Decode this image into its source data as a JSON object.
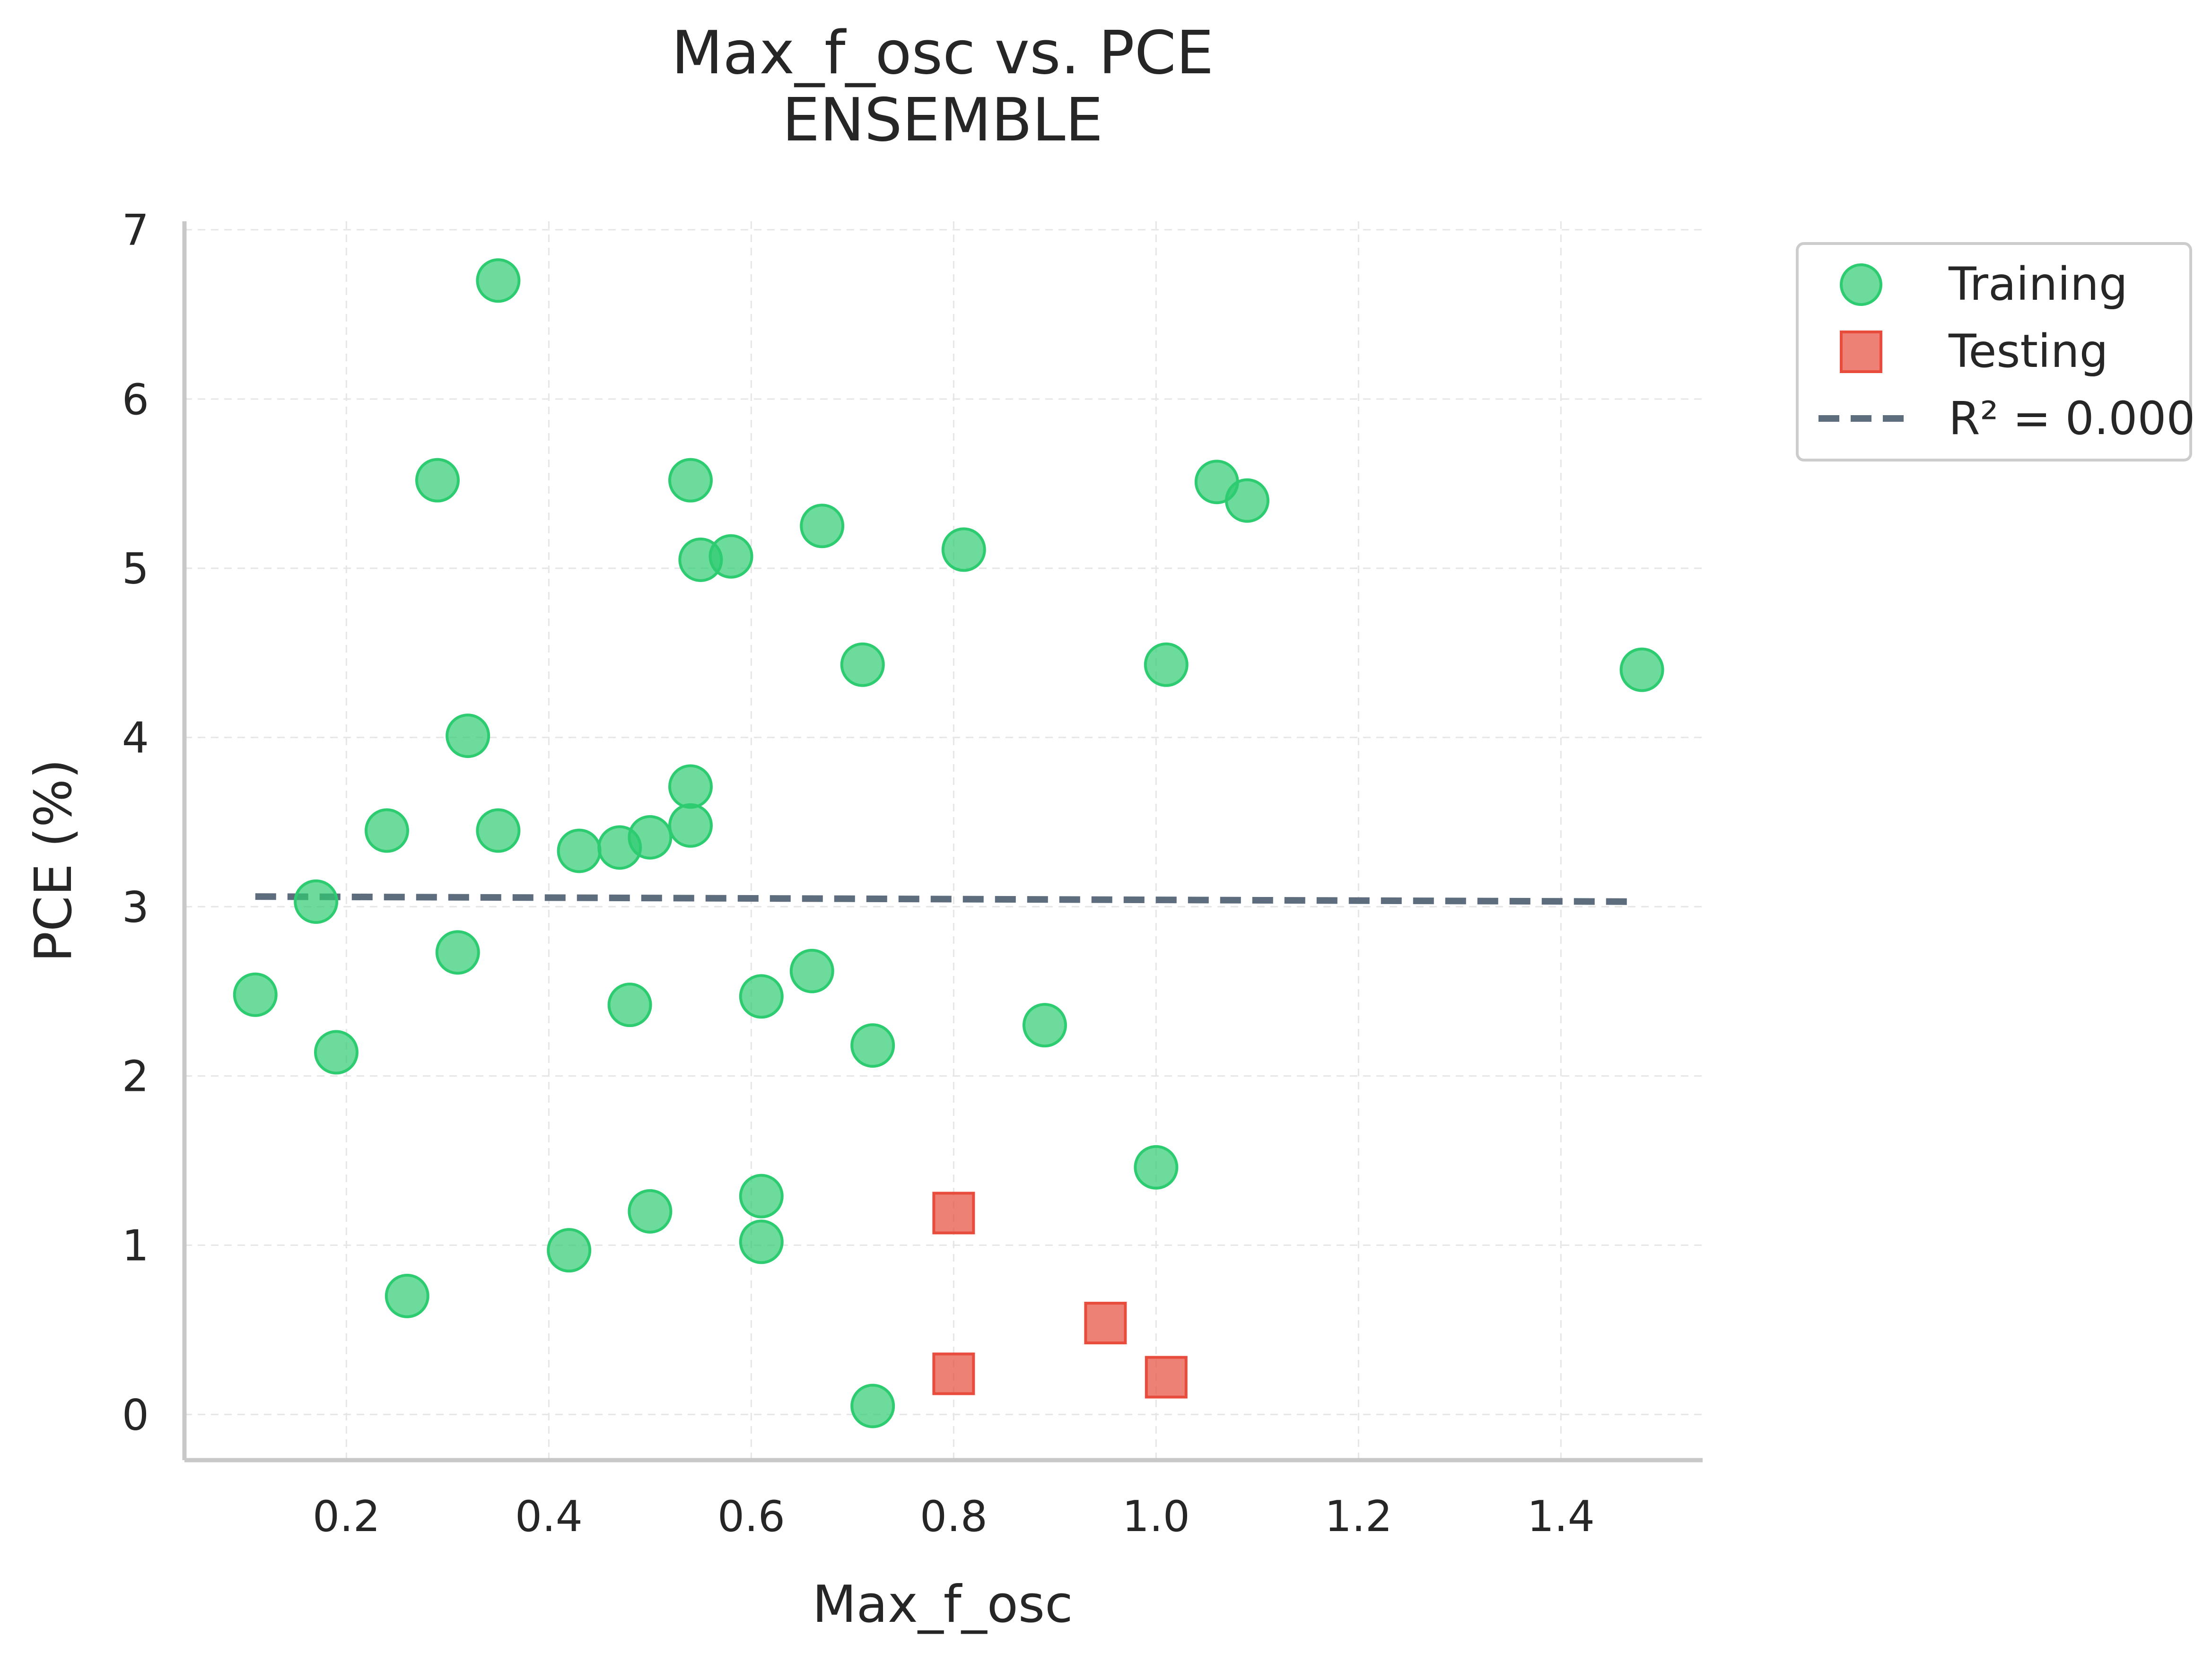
{
  "chart_data": {
    "type": "scatter",
    "title": "Max_f_osc vs. PCE",
    "subtitle": "ENSEMBLE",
    "xlabel": "Max_f_osc",
    "ylabel": "PCE (%)",
    "xlim": [
      0.04,
      1.54
    ],
    "ylim": [
      -0.27,
      7.05
    ],
    "x_ticks": [
      0.2,
      0.4,
      0.6,
      0.8,
      1.0,
      1.2,
      1.4
    ],
    "x_tick_labels": [
      "0.2",
      "0.4",
      "0.6",
      "0.8",
      "1.0",
      "1.2",
      "1.4"
    ],
    "y_ticks": [
      0,
      1,
      2,
      3,
      4,
      5,
      6,
      7
    ],
    "y_tick_labels": [
      "0",
      "1",
      "2",
      "3",
      "4",
      "5",
      "6",
      "7"
    ],
    "grid": true,
    "legend_position": "outside-top-right",
    "series": [
      {
        "name": "Training",
        "marker": "circle",
        "color": "#2ecc71",
        "points": [
          [
            0.35,
            6.7
          ],
          [
            0.29,
            5.52
          ],
          [
            0.54,
            5.52
          ],
          [
            0.55,
            5.05
          ],
          [
            0.58,
            5.07
          ],
          [
            0.67,
            5.25
          ],
          [
            0.81,
            5.11
          ],
          [
            1.06,
            5.51
          ],
          [
            1.09,
            5.4
          ],
          [
            0.71,
            4.43
          ],
          [
            1.01,
            4.43
          ],
          [
            1.48,
            4.4
          ],
          [
            0.32,
            4.01
          ],
          [
            0.24,
            3.45
          ],
          [
            0.35,
            3.45
          ],
          [
            0.43,
            3.33
          ],
          [
            0.47,
            3.35
          ],
          [
            0.5,
            3.41
          ],
          [
            0.54,
            3.71
          ],
          [
            0.54,
            3.48
          ],
          [
            0.17,
            3.03
          ],
          [
            0.31,
            2.73
          ],
          [
            0.11,
            2.48
          ],
          [
            0.19,
            2.14
          ],
          [
            0.48,
            2.42
          ],
          [
            0.61,
            2.47
          ],
          [
            0.66,
            2.62
          ],
          [
            0.72,
            2.18
          ],
          [
            0.89,
            2.3
          ],
          [
            1.0,
            1.46
          ],
          [
            0.61,
            1.29
          ],
          [
            0.5,
            1.2
          ],
          [
            0.42,
            0.97
          ],
          [
            0.61,
            1.02
          ],
          [
            0.26,
            0.7
          ],
          [
            0.72,
            0.05
          ]
        ]
      },
      {
        "name": "Testing",
        "marker": "square",
        "color": "#e74c3c",
        "points": [
          [
            0.8,
            1.19
          ],
          [
            0.95,
            0.54
          ],
          [
            0.8,
            0.24
          ],
          [
            1.01,
            0.22
          ]
        ]
      },
      {
        "name": "R² = 0.000",
        "type": "line",
        "style": "dashed",
        "color": "#5d6d7e",
        "points": [
          [
            0.11,
            3.06
          ],
          [
            1.47,
            3.03
          ]
        ]
      }
    ]
  }
}
